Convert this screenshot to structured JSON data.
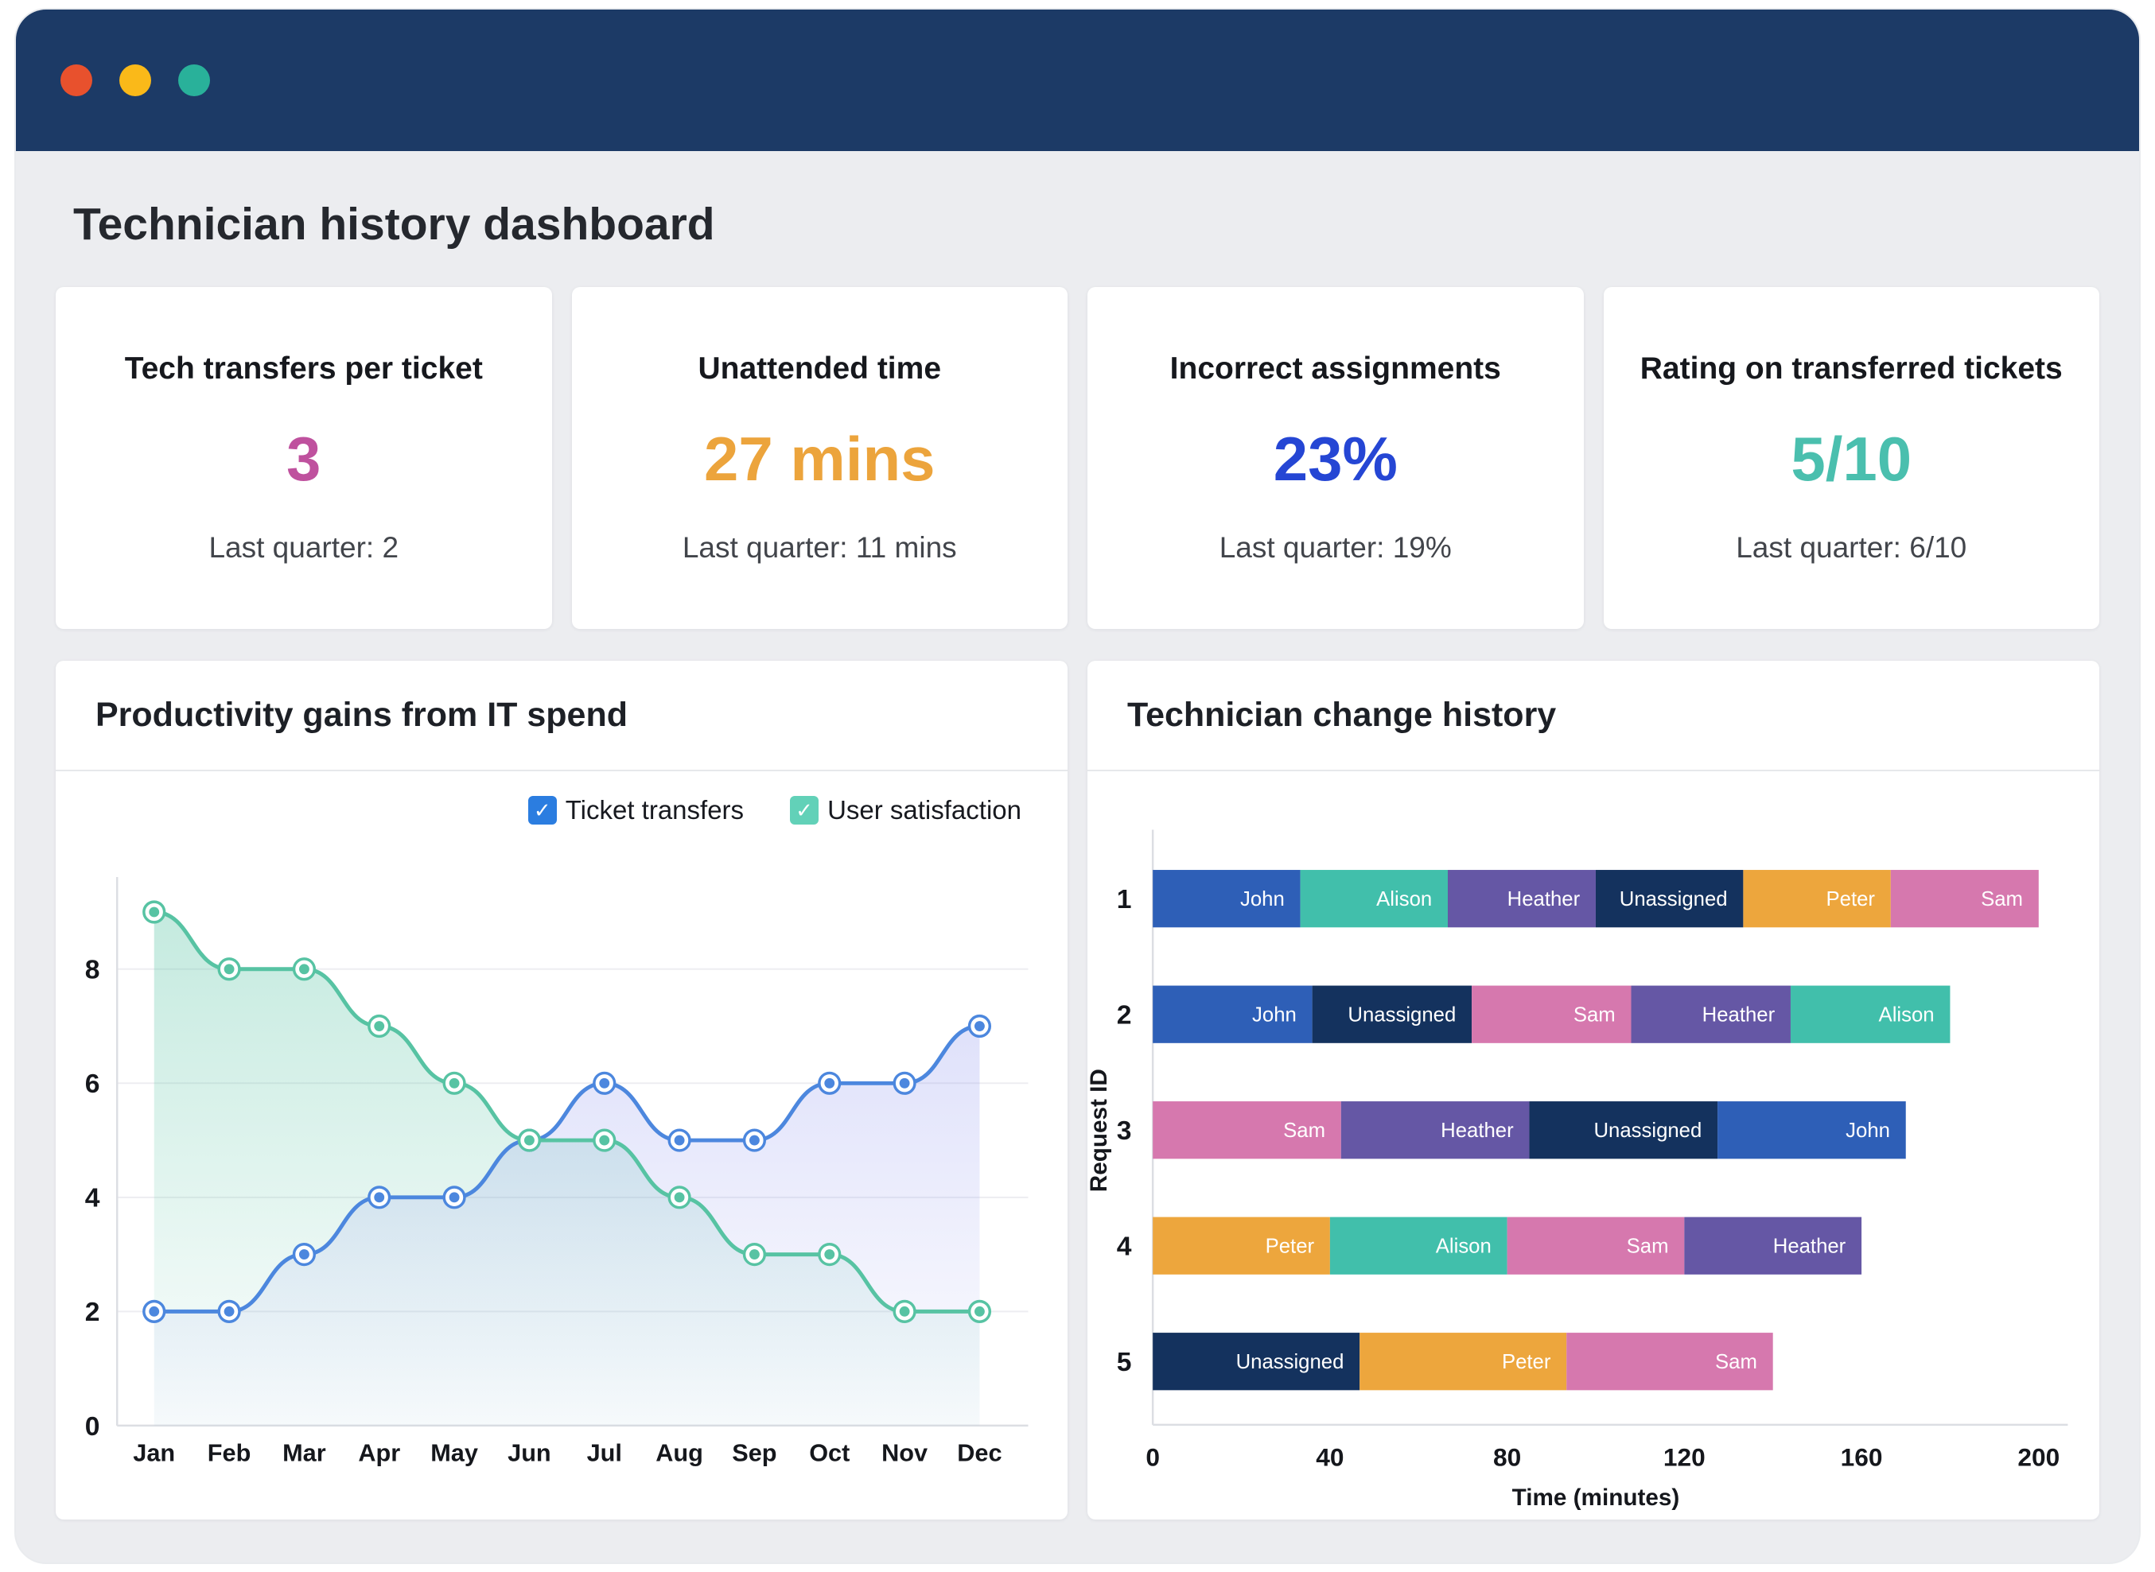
{
  "titlebar": {
    "dot_colors": [
      "#e8512d",
      "#fab919",
      "#29b19a"
    ],
    "background": "#1c3a66"
  },
  "page_title": "Technician history dashboard",
  "kpis": [
    {
      "title": "Tech transfers per ticket",
      "value": "3",
      "subtitle": "Last quarter: 2",
      "color": "#bf519e"
    },
    {
      "title": "Unattended time",
      "value": "27 mins",
      "subtitle": "Last quarter: 11 mins",
      "color": "#eca43c"
    },
    {
      "title": "Incorrect assignments",
      "value": "23%",
      "subtitle": "Last quarter: 19%",
      "color": "#2546d4"
    },
    {
      "title": "Rating on transferred tickets",
      "value": "5/10",
      "subtitle": "Last quarter: 6/10",
      "color": "#4abfae"
    }
  ],
  "chart_data": [
    {
      "type": "area",
      "title": "Productivity gains from IT spend",
      "x": [
        "Jan",
        "Feb",
        "Mar",
        "Apr",
        "May",
        "Jun",
        "Jul",
        "Aug",
        "Sep",
        "Oct",
        "Nov",
        "Dec"
      ],
      "series": [
        {
          "name": "Ticket transfers",
          "color": "#4c87de",
          "checkbox_color": "#2b7de0",
          "fill_color": "140,147,238",
          "values": [
            2,
            2,
            3,
            4,
            4,
            5,
            6,
            5,
            5,
            6,
            6,
            7
          ]
        },
        {
          "name": "User satisfaction",
          "color": "#57c3a3",
          "checkbox_color": "#62d1b8",
          "fill_color": "87,195,163",
          "values": [
            9,
            8,
            8,
            7,
            6,
            5,
            5,
            4,
            3,
            3,
            2,
            2
          ]
        }
      ],
      "ylim": [
        0,
        9.5
      ],
      "yticks": [
        0,
        2,
        4,
        6,
        8
      ],
      "grid": "horizontal",
      "legend_position": "top-right"
    },
    {
      "type": "bar",
      "title": "Technician change history",
      "orientation": "horizontal-stacked",
      "xlabel": "Time (minutes)",
      "ylabel": "Request ID",
      "xlim": [
        0,
        200
      ],
      "xticks": [
        0,
        40,
        80,
        120,
        160,
        200
      ],
      "technician_colors": {
        "John": "#2e5fb7",
        "Alison": "#41bfab",
        "Heather": "#6557a5",
        "Unassigned": "#14325e",
        "Peter": "#eda63d",
        "Sam": "#d678ae"
      },
      "rows": [
        {
          "id": "1",
          "segments": [
            {
              "name": "John",
              "minutes": 33.3
            },
            {
              "name": "Alison",
              "minutes": 33.3
            },
            {
              "name": "Heather",
              "minutes": 33.4
            },
            {
              "name": "Unassigned",
              "minutes": 33.3
            },
            {
              "name": "Peter",
              "minutes": 33.3
            },
            {
              "name": "Sam",
              "minutes": 33.4
            }
          ]
        },
        {
          "id": "2",
          "segments": [
            {
              "name": "John",
              "minutes": 36
            },
            {
              "name": "Unassigned",
              "minutes": 36
            },
            {
              "name": "Sam",
              "minutes": 36
            },
            {
              "name": "Heather",
              "minutes": 36
            },
            {
              "name": "Alison",
              "minutes": 36
            }
          ]
        },
        {
          "id": "3",
          "segments": [
            {
              "name": "Sam",
              "minutes": 42.5
            },
            {
              "name": "Heather",
              "minutes": 42.5
            },
            {
              "name": "Unassigned",
              "minutes": 42.5
            },
            {
              "name": "John",
              "minutes": 42.5
            }
          ]
        },
        {
          "id": "4",
          "segments": [
            {
              "name": "Peter",
              "minutes": 40
            },
            {
              "name": "Alison",
              "minutes": 40
            },
            {
              "name": "Sam",
              "minutes": 40
            },
            {
              "name": "Heather",
              "minutes": 40
            }
          ]
        },
        {
          "id": "5",
          "segments": [
            {
              "name": "Unassigned",
              "minutes": 46.7
            },
            {
              "name": "Peter",
              "minutes": 46.7
            },
            {
              "name": "Sam",
              "minutes": 46.6
            }
          ]
        }
      ]
    }
  ]
}
